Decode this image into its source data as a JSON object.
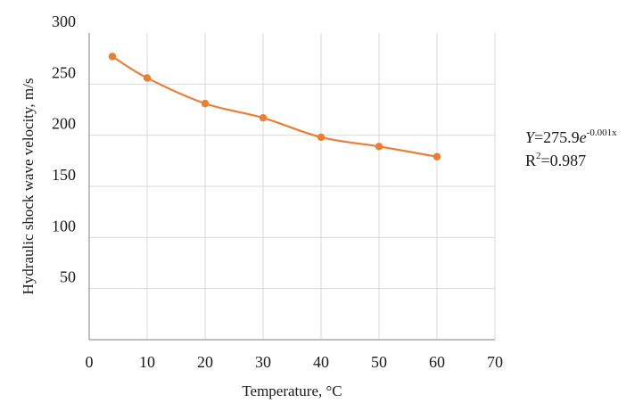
{
  "chart_data": {
    "type": "line",
    "xlabel": "Temperature, °C",
    "ylabel": "Hydraulic shock wave velocity, m/s",
    "xlim": [
      0,
      70
    ],
    "ylim": [
      0,
      300
    ],
    "x_ticks": [
      "0",
      "10",
      "20",
      "30",
      "40",
      "50",
      "60",
      "70"
    ],
    "y_ticks": [
      "50",
      "100",
      "150",
      "200",
      "250",
      "300"
    ],
    "grid": true,
    "legend": "none",
    "series": [
      {
        "color": "#ED7D31",
        "x": [
          4,
          10,
          20,
          30,
          40,
          50,
          60
        ],
        "y": [
          277,
          256,
          231,
          217,
          198,
          189,
          179
        ]
      }
    ],
    "annotation": {
      "eq_var": "Y",
      "eq_mid": "=275.9",
      "eq_base": "e",
      "eq_exp": "-0.001x",
      "r2_base": "R",
      "r2_exp": "2",
      "r2_value": "=0.987"
    }
  }
}
